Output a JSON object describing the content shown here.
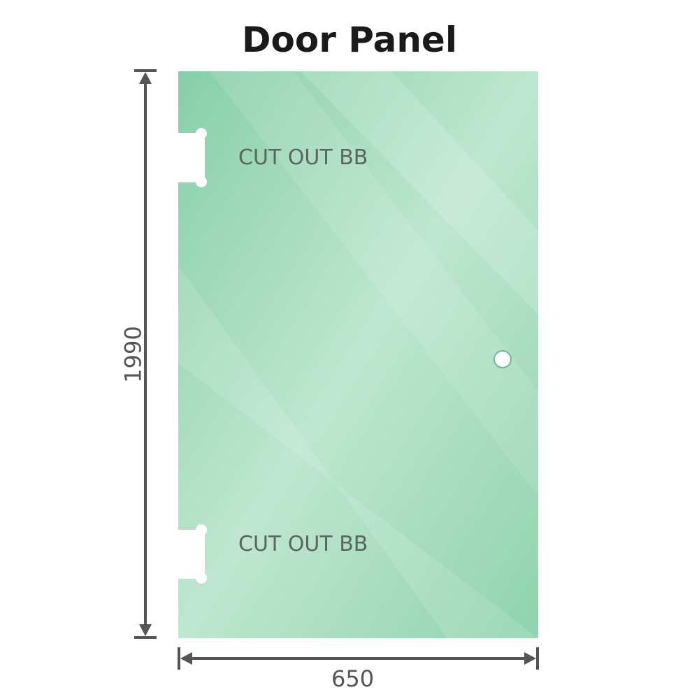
{
  "title": "Door Panel",
  "cutout_labels": [
    "CUT OUT BB",
    "CUT OUT BB"
  ],
  "dimensions": {
    "height": "1990",
    "width": "650"
  },
  "colors": {
    "glass": "#86cfa8",
    "glass_highlight": "#c0e8d2",
    "dimension_line": "#555555"
  }
}
